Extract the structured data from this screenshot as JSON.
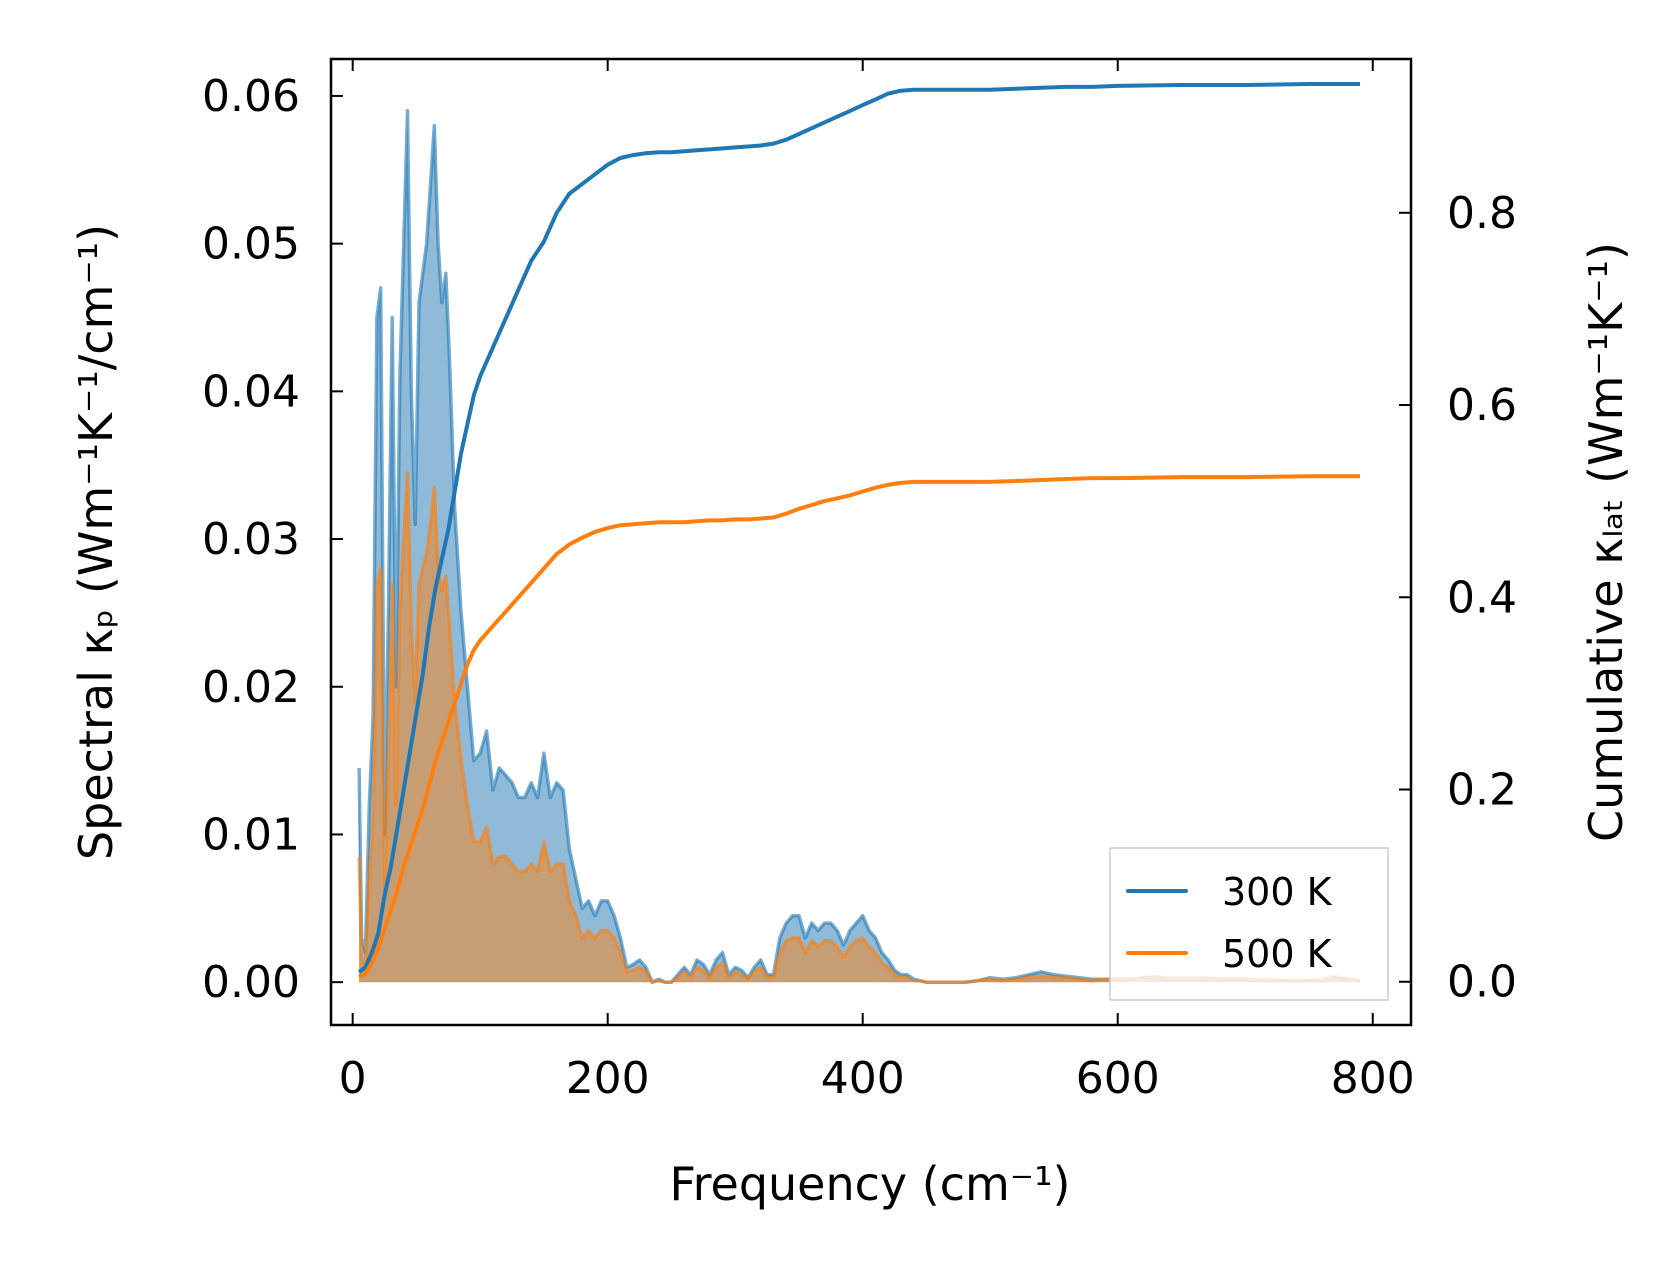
{
  "chart_data": {
    "type": "line+area",
    "title": "",
    "xlabel": "Frequency (cm⁻¹)",
    "ylabel_left": "Spectral κₚ (Wm⁻¹K⁻¹/cm⁻¹)",
    "ylabel_right": "Cumulative κₗₐₜ (Wm⁻¹K⁻¹)",
    "xlim": [
      -17,
      830
    ],
    "ylim_left": [
      -0.0029,
      0.0625
    ],
    "ylim_right": [
      -0.045,
      0.96
    ],
    "xticks": [
      0,
      200,
      400,
      600,
      800
    ],
    "xtick_labels": [
      "0",
      "200",
      "400",
      "600",
      "800"
    ],
    "yticks_left": [
      0,
      0.01,
      0.02,
      0.03,
      0.04,
      0.05,
      0.06
    ],
    "ytick_labels_left": [
      "0.00",
      "0.01",
      "0.02",
      "0.03",
      "0.04",
      "0.05",
      "0.06"
    ],
    "yticks_right": [
      0,
      0.2,
      0.4,
      0.6,
      0.8
    ],
    "ytick_labels_right": [
      "0.0",
      "0.2",
      "0.4",
      "0.6",
      "0.8"
    ],
    "legend": {
      "placement": "lower-right",
      "entries": [
        "300 K",
        "500 K"
      ]
    },
    "series": [
      {
        "name": "300 K",
        "color": "#1f77b4",
        "spectral": {
          "x": [
            5,
            7,
            10,
            13,
            16,
            19,
            22,
            25,
            28,
            31,
            34,
            37,
            40,
            43,
            46,
            49,
            52,
            55,
            58,
            61,
            64,
            67,
            70,
            73,
            76,
            80,
            85,
            90,
            95,
            100,
            105,
            110,
            115,
            120,
            125,
            130,
            135,
            140,
            145,
            150,
            155,
            160,
            165,
            170,
            175,
            180,
            185,
            190,
            195,
            200,
            205,
            210,
            215,
            220,
            225,
            230,
            235,
            240,
            245,
            250,
            255,
            260,
            265,
            270,
            275,
            280,
            285,
            290,
            295,
            300,
            305,
            310,
            315,
            320,
            325,
            330,
            335,
            340,
            345,
            350,
            355,
            360,
            365,
            370,
            375,
            380,
            385,
            390,
            395,
            400,
            405,
            410,
            415,
            420,
            425,
            430,
            435,
            440,
            445,
            450,
            460,
            470,
            480,
            490,
            500,
            510,
            520,
            530,
            540,
            545,
            550,
            560,
            570,
            580,
            590,
            600,
            610,
            620,
            630,
            640,
            650,
            660,
            670,
            680,
            690,
            700,
            710,
            720,
            730,
            740,
            750,
            760,
            770,
            780,
            790
          ],
          "y": [
            0.0145,
            0.003,
            0.002,
            0.012,
            0.018,
            0.045,
            0.047,
            0.01,
            0.025,
            0.045,
            0.02,
            0.041,
            0.05,
            0.059,
            0.04,
            0.031,
            0.046,
            0.048,
            0.05,
            0.054,
            0.058,
            0.05,
            0.046,
            0.048,
            0.042,
            0.032,
            0.025,
            0.02,
            0.015,
            0.0155,
            0.017,
            0.013,
            0.0145,
            0.014,
            0.0135,
            0.0125,
            0.0125,
            0.0135,
            0.0125,
            0.0155,
            0.0125,
            0.0135,
            0.013,
            0.009,
            0.007,
            0.005,
            0.0055,
            0.0045,
            0.0055,
            0.0055,
            0.0045,
            0.003,
            0.001,
            0.0012,
            0.0015,
            0.001,
            0.0,
            0.0002,
            0.0,
            0.0,
            0.0005,
            0.001,
            0.0005,
            0.0015,
            0.0012,
            0.0005,
            0.0015,
            0.002,
            0.0005,
            0.001,
            0.0008,
            0.0003,
            0.001,
            0.0015,
            0.0005,
            0.0005,
            0.003,
            0.004,
            0.0045,
            0.0045,
            0.003,
            0.004,
            0.0035,
            0.004,
            0.004,
            0.0035,
            0.0025,
            0.0035,
            0.004,
            0.0045,
            0.0035,
            0.003,
            0.002,
            0.0015,
            0.0008,
            0.0005,
            0.0005,
            0.0002,
            0.0001,
            0.0,
            0.0,
            0.0,
            0.0,
            0.0001,
            0.0003,
            0.0002,
            0.0003,
            0.0005,
            0.0007,
            0.0006,
            0.0005,
            0.0004,
            0.0003,
            0.0002,
            0.0002,
            0.0002,
            0.0002,
            0.0003,
            0.0003,
            0.0002,
            0.0002,
            0.0002,
            0.0002,
            0.0002,
            0.0002,
            0.0002,
            0.0001,
            0.0001,
            0.0001,
            0.0001,
            0.0001,
            0.0001,
            0.0003,
            0.0002,
            0.0001
          ]
        },
        "cumulative": {
          "x": [
            5,
            10,
            15,
            20,
            25,
            30,
            35,
            40,
            45,
            50,
            55,
            60,
            65,
            70,
            75,
            80,
            85,
            90,
            95,
            100,
            110,
            120,
            130,
            140,
            150,
            160,
            170,
            180,
            190,
            200,
            210,
            220,
            230,
            240,
            250,
            260,
            270,
            280,
            290,
            300,
            310,
            320,
            330,
            340,
            350,
            360,
            370,
            380,
            390,
            400,
            410,
            420,
            430,
            440,
            450,
            460,
            480,
            500,
            520,
            540,
            560,
            580,
            600,
            650,
            700,
            750,
            790
          ],
          "y": [
            0.01,
            0.015,
            0.03,
            0.05,
            0.09,
            0.12,
            0.16,
            0.2,
            0.24,
            0.28,
            0.32,
            0.37,
            0.41,
            0.44,
            0.47,
            0.51,
            0.55,
            0.58,
            0.61,
            0.63,
            0.66,
            0.69,
            0.72,
            0.75,
            0.77,
            0.8,
            0.82,
            0.83,
            0.84,
            0.85,
            0.857,
            0.86,
            0.862,
            0.863,
            0.863,
            0.864,
            0.865,
            0.866,
            0.867,
            0.868,
            0.869,
            0.87,
            0.872,
            0.876,
            0.882,
            0.888,
            0.894,
            0.9,
            0.906,
            0.912,
            0.918,
            0.924,
            0.927,
            0.928,
            0.928,
            0.928,
            0.928,
            0.928,
            0.929,
            0.93,
            0.931,
            0.931,
            0.932,
            0.933,
            0.933,
            0.934,
            0.934
          ]
        }
      },
      {
        "name": "500 K",
        "color": "#ff7f0e",
        "spectral": {
          "x": [
            5,
            7,
            10,
            13,
            16,
            19,
            22,
            25,
            28,
            31,
            34,
            37,
            40,
            43,
            46,
            49,
            52,
            55,
            58,
            61,
            64,
            67,
            70,
            73,
            76,
            80,
            85,
            90,
            95,
            100,
            105,
            110,
            115,
            120,
            125,
            130,
            135,
            140,
            145,
            150,
            155,
            160,
            165,
            170,
            175,
            180,
            185,
            190,
            195,
            200,
            205,
            210,
            215,
            220,
            225,
            230,
            235,
            240,
            245,
            250,
            255,
            260,
            265,
            270,
            275,
            280,
            285,
            290,
            295,
            300,
            305,
            310,
            315,
            320,
            325,
            330,
            335,
            340,
            345,
            350,
            355,
            360,
            365,
            370,
            375,
            380,
            385,
            390,
            395,
            400,
            405,
            410,
            415,
            420,
            425,
            430,
            435,
            440,
            445,
            450,
            460,
            470,
            480,
            490,
            500,
            510,
            520,
            530,
            540,
            545,
            550,
            560,
            570,
            580,
            590,
            600,
            610,
            620,
            630,
            640,
            650,
            660,
            670,
            680,
            690,
            700,
            710,
            720,
            730,
            740,
            750,
            760,
            770,
            780,
            790
          ],
          "y": [
            0.0085,
            0.0015,
            0.001,
            0.007,
            0.011,
            0.027,
            0.028,
            0.006,
            0.015,
            0.027,
            0.012,
            0.025,
            0.03,
            0.0345,
            0.024,
            0.019,
            0.027,
            0.028,
            0.029,
            0.031,
            0.0335,
            0.028,
            0.0265,
            0.0275,
            0.024,
            0.019,
            0.015,
            0.012,
            0.0095,
            0.0095,
            0.0105,
            0.008,
            0.0085,
            0.0085,
            0.008,
            0.0075,
            0.0075,
            0.008,
            0.0075,
            0.0095,
            0.0075,
            0.008,
            0.008,
            0.0055,
            0.0045,
            0.003,
            0.0035,
            0.003,
            0.0035,
            0.0035,
            0.003,
            0.002,
            0.0007,
            0.0008,
            0.001,
            0.0007,
            0.0,
            0.0001,
            0.0,
            0.0,
            0.0003,
            0.0007,
            0.0003,
            0.001,
            0.0008,
            0.0003,
            0.001,
            0.0013,
            0.0003,
            0.0007,
            0.0005,
            0.0002,
            0.0007,
            0.001,
            0.0003,
            0.0003,
            0.002,
            0.0028,
            0.003,
            0.003,
            0.002,
            0.0028,
            0.0024,
            0.0028,
            0.0028,
            0.0024,
            0.0017,
            0.0024,
            0.0028,
            0.003,
            0.0024,
            0.002,
            0.0013,
            0.001,
            0.0005,
            0.0003,
            0.0003,
            0.0001,
            0.0001,
            0.0,
            0.0,
            0.0,
            0.0,
            0.0001,
            0.0002,
            0.0001,
            0.0002,
            0.0003,
            0.0004,
            0.0004,
            0.0003,
            0.0003,
            0.0002,
            0.0001,
            0.0002,
            0.0002,
            0.0002,
            0.0003,
            0.0004,
            0.0003,
            0.0003,
            0.0003,
            0.0003,
            0.0002,
            0.0002,
            0.0002,
            0.0002,
            0.0002,
            0.0001,
            0.0001,
            0.0001,
            0.0002,
            0.0004,
            0.0002,
            0.0001
          ]
        },
        "cumulative": {
          "x": [
            5,
            10,
            15,
            20,
            25,
            30,
            35,
            40,
            45,
            50,
            55,
            60,
            65,
            70,
            75,
            80,
            85,
            90,
            95,
            100,
            110,
            120,
            130,
            140,
            150,
            160,
            170,
            180,
            190,
            200,
            210,
            220,
            230,
            240,
            250,
            260,
            270,
            280,
            290,
            300,
            310,
            320,
            330,
            340,
            350,
            360,
            370,
            380,
            390,
            400,
            410,
            420,
            430,
            440,
            450,
            460,
            480,
            500,
            520,
            540,
            560,
            580,
            600,
            650,
            700,
            750,
            790
          ],
          "y": [
            0.005,
            0.008,
            0.02,
            0.035,
            0.055,
            0.075,
            0.095,
            0.12,
            0.14,
            0.16,
            0.18,
            0.205,
            0.23,
            0.25,
            0.27,
            0.29,
            0.31,
            0.33,
            0.345,
            0.355,
            0.37,
            0.385,
            0.4,
            0.415,
            0.43,
            0.445,
            0.455,
            0.462,
            0.468,
            0.472,
            0.475,
            0.476,
            0.477,
            0.478,
            0.478,
            0.478,
            0.479,
            0.48,
            0.48,
            0.481,
            0.481,
            0.482,
            0.483,
            0.487,
            0.492,
            0.496,
            0.5,
            0.503,
            0.506,
            0.51,
            0.514,
            0.517,
            0.519,
            0.52,
            0.52,
            0.52,
            0.52,
            0.52,
            0.521,
            0.522,
            0.523,
            0.524,
            0.524,
            0.525,
            0.525,
            0.526,
            0.526
          ]
        }
      }
    ]
  }
}
